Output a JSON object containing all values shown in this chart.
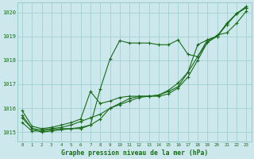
{
  "xlabel": "Graphe pression niveau de la mer (hPa)",
  "bg_color": "#cce8ec",
  "grid_color": "#99cccc",
  "line_color": "#1a6b1a",
  "marker_color": "#1a6b1a",
  "xlim": [
    -0.5,
    23.5
  ],
  "ylim": [
    1014.6,
    1020.4
  ],
  "yticks": [
    1015,
    1016,
    1017,
    1018,
    1019,
    1020
  ],
  "xticks": [
    0,
    1,
    2,
    3,
    4,
    5,
    6,
    7,
    8,
    9,
    10,
    11,
    12,
    13,
    14,
    15,
    16,
    17,
    18,
    19,
    20,
    21,
    22,
    23
  ],
  "series": [
    [
      1015.6,
      1015.15,
      1015.0,
      1015.05,
      1015.1,
      1015.15,
      1015.15,
      1015.3,
      1016.8,
      1018.05,
      1018.82,
      1018.72,
      1018.72,
      1018.72,
      1018.65,
      1018.65,
      1018.85,
      1018.25,
      1018.15,
      1018.75,
      1019.05,
      1019.15,
      1019.55,
      1020.05
    ],
    [
      1015.4,
      1015.05,
      1015.05,
      1015.1,
      1015.15,
      1015.15,
      1015.2,
      1015.3,
      1015.55,
      1016.0,
      1016.15,
      1016.3,
      1016.45,
      1016.5,
      1016.5,
      1016.6,
      1016.85,
      1017.3,
      1018.0,
      1018.75,
      1019.0,
      1019.5,
      1019.95,
      1020.2
    ],
    [
      1015.7,
      1015.15,
      1015.1,
      1015.15,
      1015.2,
      1015.3,
      1015.45,
      1015.6,
      1015.75,
      1016.0,
      1016.2,
      1016.4,
      1016.5,
      1016.5,
      1016.55,
      1016.7,
      1016.9,
      1017.5,
      1018.15,
      1018.85,
      1019.0,
      1019.5,
      1019.95,
      1020.2
    ],
    [
      1015.9,
      1015.25,
      1015.15,
      1015.2,
      1015.3,
      1015.4,
      1015.55,
      1016.7,
      1016.2,
      1016.3,
      1016.45,
      1016.5,
      1016.5,
      1016.5,
      1016.55,
      1016.75,
      1017.05,
      1017.5,
      1018.65,
      1018.85,
      1019.0,
      1019.55,
      1019.95,
      1020.25
    ]
  ]
}
